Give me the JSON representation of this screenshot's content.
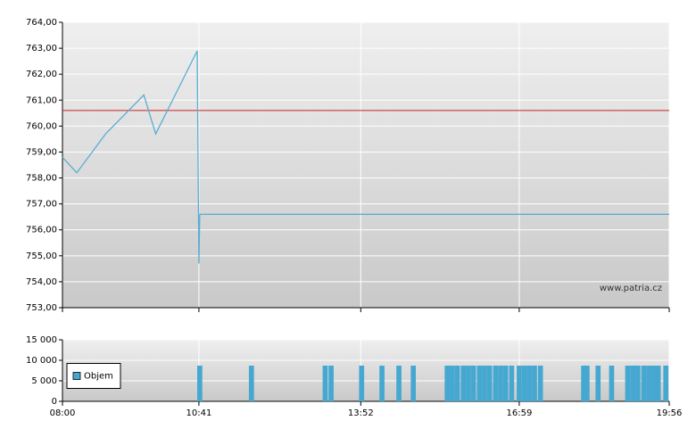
{
  "chart_data": [
    {
      "type": "line",
      "x": [
        480,
        497,
        531,
        576,
        590,
        639,
        641,
        642,
        1196
      ],
      "values": [
        758.8,
        758.2,
        759.7,
        761.2,
        759.7,
        762.9,
        754.7,
        756.6,
        756.6
      ],
      "color": "#5aaed4",
      "xlim": [
        480,
        1196
      ],
      "ylim": [
        753,
        764
      ],
      "yticks": [
        {
          "value": 753,
          "label": "753,00"
        },
        {
          "value": 754,
          "label": "754,00"
        },
        {
          "value": 755,
          "label": "755,00"
        },
        {
          "value": 756,
          "label": "756,00"
        },
        {
          "value": 757,
          "label": "757,00"
        },
        {
          "value": 758,
          "label": "758,00"
        },
        {
          "value": 759,
          "label": "759,00"
        },
        {
          "value": 760,
          "label": "760,00"
        },
        {
          "value": 761,
          "label": "761,00"
        },
        {
          "value": 762,
          "label": "762,00"
        },
        {
          "value": 763,
          "label": "763,00"
        },
        {
          "value": 764,
          "label": "764,00"
        }
      ],
      "reference_line": {
        "value": 760.6,
        "color": "#cc2222"
      },
      "watermark": "www.patria.cz",
      "grid": true
    },
    {
      "type": "bar",
      "x": [
        642,
        703,
        790,
        797,
        833,
        857,
        877,
        894,
        934,
        940,
        946,
        953,
        959,
        965,
        972,
        978,
        984,
        991,
        997,
        1003,
        1010,
        1019,
        1025,
        1031,
        1037,
        1044,
        1095,
        1099,
        1112,
        1128,
        1147,
        1153,
        1159,
        1166,
        1172,
        1178,
        1183,
        1192
      ],
      "series": [
        {
          "name": "Objem",
          "color": "#46a8d0",
          "values": [
            8700,
            8700,
            8700,
            8700,
            8700,
            8700,
            8700,
            8700,
            8700,
            8700,
            8700,
            8700,
            8700,
            8700,
            8700,
            8700,
            8700,
            8700,
            8700,
            8700,
            8700,
            8700,
            8700,
            8700,
            8700,
            8700,
            8700,
            8700,
            8700,
            8700,
            8700,
            8700,
            8700,
            8700,
            8700,
            8700,
            8700,
            8700
          ]
        }
      ],
      "xlim": [
        480,
        1196
      ],
      "xticks": [
        {
          "value": 480,
          "label": "08:00"
        },
        {
          "value": 641,
          "label": "10:41"
        },
        {
          "value": 832,
          "label": "13:52"
        },
        {
          "value": 1019,
          "label": "16:59"
        },
        {
          "value": 1196,
          "label": "19:56"
        }
      ],
      "ylim": [
        0,
        15000
      ],
      "yticks": [
        0,
        {
          "value": 5000,
          "label": "5 000"
        },
        {
          "value": 10000,
          "label": "10 000"
        },
        {
          "value": 15000,
          "label": "15 000"
        }
      ],
      "legend": "left",
      "grid": true
    }
  ]
}
